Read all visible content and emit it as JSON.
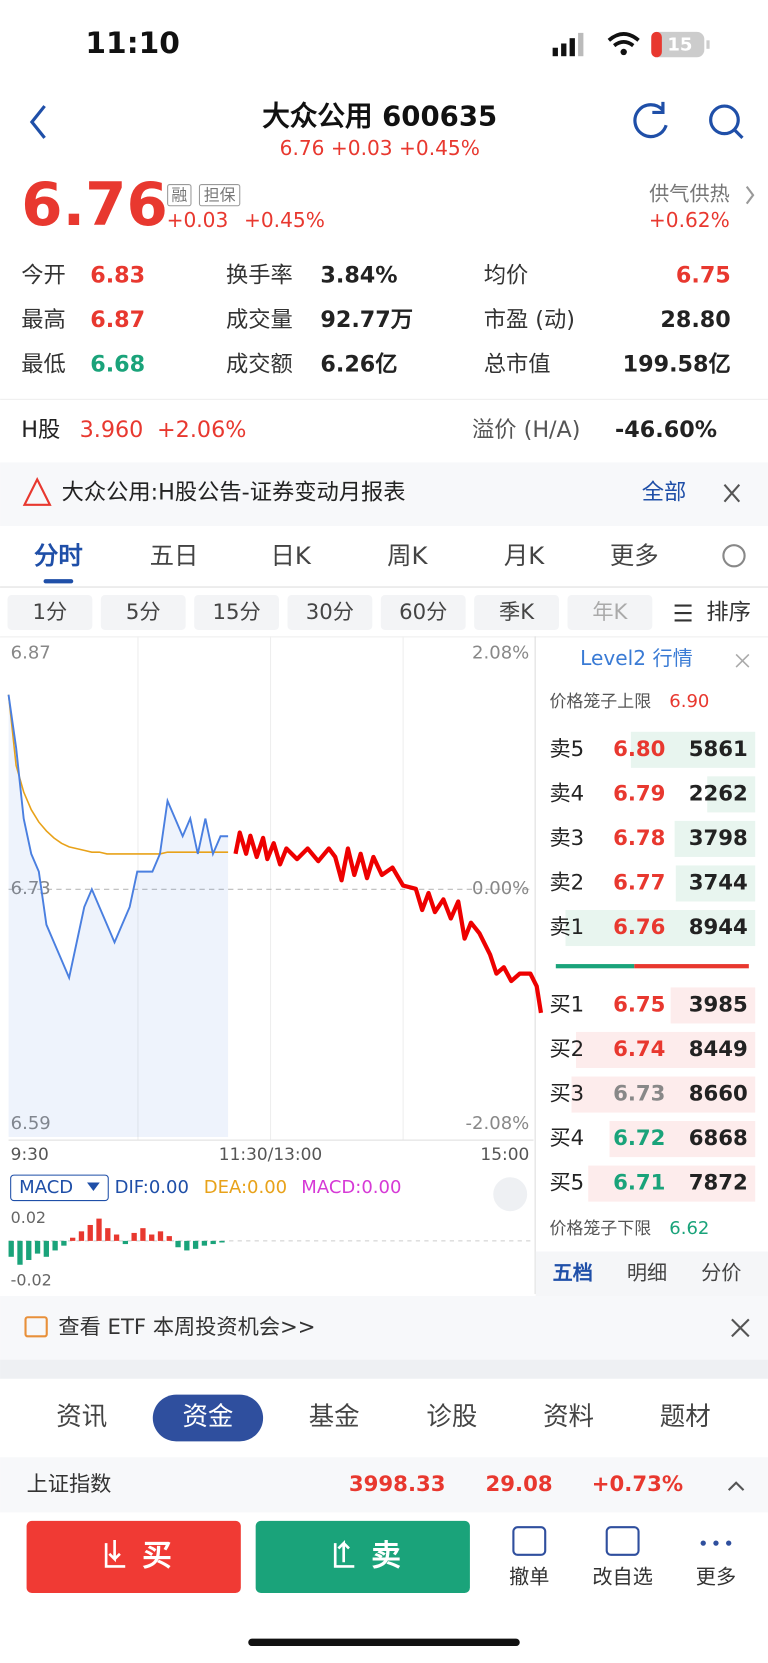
{
  "status_bar": {
    "time": "11:10",
    "battery": "15"
  },
  "header": {
    "title": "大众公用 600635",
    "subtitle": "6.76 +0.03 +0.45%"
  },
  "quote": {
    "price": "6.76",
    "tags": [
      "融",
      "担保"
    ],
    "change": "+0.03",
    "change_pct": "+0.45%",
    "sector": "供气供热",
    "sector_pct": "+0.62%"
  },
  "stats": [
    [
      {
        "label": "今开",
        "value": "6.83",
        "color": "#e8382f"
      },
      {
        "label": "换手率",
        "value": "3.84%",
        "color": "#222"
      },
      {
        "label": "均价",
        "value": "6.75",
        "color": "#e8382f"
      }
    ],
    [
      {
        "label": "最高",
        "value": "6.87",
        "color": "#e8382f"
      },
      {
        "label": "成交量",
        "value": "92.77万",
        "color": "#222"
      },
      {
        "label": "市盈 (动)",
        "value": "28.80",
        "color": "#222"
      }
    ],
    [
      {
        "label": "最低",
        "value": "6.68",
        "color": "#1aa37a"
      },
      {
        "label": "成交额",
        "value": "6.26亿",
        "color": "#222"
      },
      {
        "label": "总市值",
        "value": "199.58亿",
        "color": "#222"
      }
    ]
  ],
  "h_share": {
    "label": "H股",
    "price": "3.960",
    "pct": "+2.06%",
    "premium_label": "溢价 (H/A)",
    "premium": "-46.60%"
  },
  "notice": {
    "text": "大众公用:H股公告-证券变动月报表",
    "action": "全部"
  },
  "tabs": {
    "items": [
      "分时",
      "五日",
      "日K",
      "周K",
      "月K",
      "更多"
    ],
    "active": 0
  },
  "periods": {
    "items": [
      "1分",
      "5分",
      "15分",
      "30分",
      "60分",
      "季K",
      "年K"
    ],
    "sort": "排序"
  },
  "chart": {
    "ylim": [
      6.59,
      6.87
    ],
    "y_labels": [
      "6.87",
      "6.73",
      "6.59"
    ],
    "pct_labels": [
      "2.08%",
      "0.00%",
      "-2.08%"
    ],
    "x_labels": [
      "9:30",
      "11:30/13:00",
      "15:00"
    ],
    "price_line": [
      6.84,
      6.81,
      6.77,
      6.75,
      6.74,
      6.71,
      6.7,
      6.69,
      6.68,
      6.7,
      6.72,
      6.73,
      6.72,
      6.71,
      6.7,
      6.71,
      6.72,
      6.74,
      6.74,
      6.74,
      6.75,
      6.78,
      6.77,
      6.76,
      6.77,
      6.75,
      6.77,
      6.75,
      6.76,
      6.76
    ],
    "avg_line": [
      6.84,
      6.8,
      6.785,
      6.775,
      6.768,
      6.763,
      6.759,
      6.756,
      6.754,
      6.753,
      6.752,
      6.751,
      6.751,
      6.75,
      6.75,
      6.75,
      6.75,
      6.75,
      6.75,
      6.75,
      6.75,
      6.751,
      6.751,
      6.751,
      6.751,
      6.751,
      6.751,
      6.751,
      6.751,
      6.751
    ],
    "macd": {
      "button": "MACD",
      "dif": "DIF:0.00",
      "dea": "DEA:0.00",
      "macd": "MACD:0.00",
      "top": "0.02",
      "bottom": "-0.02",
      "hist": [
        -0.01,
        -0.015,
        -0.012,
        -0.008,
        -0.01,
        -0.006,
        -0.003,
        0.002,
        0.006,
        0.01,
        0.014,
        0.008,
        0.004,
        -0.002,
        0.005,
        0.008,
        0.004,
        0.006,
        0.003,
        -0.004,
        -0.006,
        -0.005,
        -0.003,
        -0.002,
        -0.001
      ]
    }
  },
  "order_book": {
    "title": "Level2 行情",
    "upper_label": "价格笼子上限",
    "upper": "6.90",
    "sells": [
      {
        "label": "卖5",
        "price": "6.80",
        "volume": 5861,
        "color": "#e8382f"
      },
      {
        "label": "卖4",
        "price": "6.79",
        "volume": 2262,
        "color": "#e8382f"
      },
      {
        "label": "卖3",
        "price": "6.78",
        "volume": 3798,
        "color": "#e8382f"
      },
      {
        "label": "卖2",
        "price": "6.77",
        "volume": 3744,
        "color": "#e8382f"
      },
      {
        "label": "卖1",
        "price": "6.76",
        "volume": 8944,
        "color": "#e8382f"
      }
    ],
    "buys": [
      {
        "label": "买1",
        "price": "6.75",
        "volume": 3985,
        "color": "#e8382f"
      },
      {
        "label": "买2",
        "price": "6.74",
        "volume": 8449,
        "color": "#e8382f"
      },
      {
        "label": "买3",
        "price": "6.73",
        "volume": 8660,
        "color": "#888"
      },
      {
        "label": "买4",
        "price": "6.72",
        "volume": 6868,
        "color": "#1aa37a"
      },
      {
        "label": "买5",
        "price": "6.71",
        "volume": 7872,
        "color": "#1aa37a"
      }
    ],
    "lower_label": "价格笼子下限",
    "lower": "6.62",
    "tabs": [
      "五档",
      "明细",
      "分价"
    ]
  },
  "banner": "查看 ETF 本周投资机会>>",
  "bottom_tabs": {
    "items": [
      "资讯",
      "资金",
      "基金",
      "诊股",
      "资料",
      "题材"
    ],
    "active": 1
  },
  "index_row": {
    "name": "上证指数",
    "value": "3998.33",
    "change": "29.08",
    "pct": "+0.73%"
  },
  "actions": {
    "buy": "买",
    "sell": "卖",
    "items": [
      "撤单",
      "改自选",
      "更多"
    ]
  }
}
